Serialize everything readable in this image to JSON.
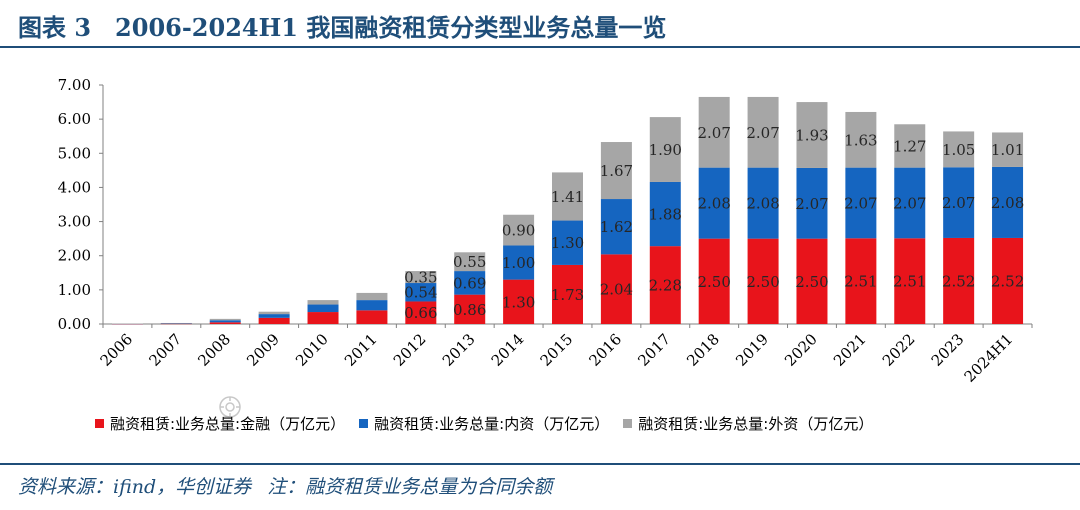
{
  "figure": {
    "title": "图表 3　2006-2024H1 我国融资租赁分类型业务总量一览",
    "source": "资料来源：ifind，华创证券",
    "note": "注：融资租赁业务总量为合同余额"
  },
  "colors": {
    "finance": "#e8141b",
    "domestic": "#1565c0",
    "foreign": "#a6a6a6",
    "title": "#1f4e79"
  },
  "chart_data": {
    "type": "bar",
    "stacked": true,
    "categories": [
      "2006",
      "2007",
      "2008",
      "2009",
      "2010",
      "2011",
      "2012",
      "2013",
      "2014",
      "2015",
      "2016",
      "2017",
      "2018",
      "2019",
      "2020",
      "2021",
      "2022",
      "2023",
      "2024H1"
    ],
    "ylim": [
      0,
      7
    ],
    "yticks": [
      "0.00",
      "1.00",
      "2.00",
      "3.00",
      "4.00",
      "5.00",
      "6.00",
      "7.00"
    ],
    "legend_position": "bottom",
    "grid": false,
    "series": [
      {
        "name": "融资租赁:业务总量:金融（万亿元）",
        "color_key": "finance",
        "values": [
          0.005,
          0.01,
          0.05,
          0.18,
          0.35,
          0.4,
          0.66,
          0.86,
          1.3,
          1.73,
          2.04,
          2.28,
          2.5,
          2.5,
          2.5,
          2.51,
          2.51,
          2.52,
          2.52
        ],
        "labels": [
          "",
          "",
          "",
          "",
          "",
          "",
          "0.66",
          "0.86",
          "1.30",
          "1.73",
          "2.04",
          "2.28",
          "2.50",
          "2.50",
          "2.50",
          "2.51",
          "2.51",
          "2.52",
          "2.52"
        ]
      },
      {
        "name": "融资租赁:业务总量:内资（万亿元）",
        "color_key": "domestic",
        "values": [
          0.005,
          0.01,
          0.06,
          0.11,
          0.22,
          0.3,
          0.54,
          0.69,
          1.0,
          1.3,
          1.62,
          1.88,
          2.08,
          2.08,
          2.07,
          2.07,
          2.07,
          2.07,
          2.08
        ],
        "labels": [
          "",
          "",
          "",
          "",
          "",
          "",
          "0.54",
          "0.69",
          "1.00",
          "1.30",
          "1.62",
          "1.88",
          "2.08",
          "2.08",
          "2.07",
          "2.07",
          "2.07",
          "2.07",
          "2.08"
        ]
      },
      {
        "name": "融资租赁:业务总量:外资（万亿元）",
        "color_key": "foreign",
        "values": [
          0.005,
          0.01,
          0.04,
          0.07,
          0.13,
          0.21,
          0.35,
          0.55,
          0.9,
          1.41,
          1.67,
          1.9,
          2.07,
          2.07,
          1.93,
          1.63,
          1.27,
          1.05,
          1.01
        ],
        "labels": [
          "",
          "",
          "",
          "",
          "",
          "",
          "0.35",
          "0.55",
          "0.90",
          "1.41",
          "1.67",
          "1.90",
          "2.07",
          "2.07",
          "1.93",
          "1.63",
          "1.27",
          "1.05",
          "1.01"
        ]
      }
    ]
  }
}
